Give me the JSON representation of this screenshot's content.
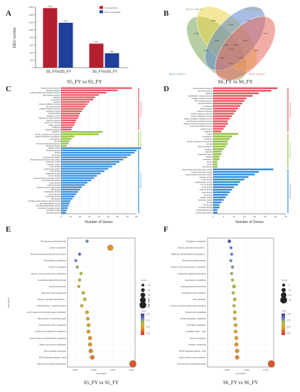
{
  "colors": {
    "up": "#b41f2e",
    "down": "#1f3f9a",
    "bp": "#e85a63",
    "cc": "#93c244",
    "mf": "#3a8fd6"
  },
  "panels": {
    "a": "A",
    "b": "B",
    "c": "C",
    "d": "D",
    "e": "E",
    "f": "F"
  },
  "chart_data": [
    {
      "id": "A",
      "type": "bar",
      "ylabel": "DEG number",
      "ylim": [
        0,
        1600
      ],
      "yticks": [
        "0",
        "200",
        "400",
        "600",
        "800",
        "1000",
        "1200",
        "1400",
        "1600"
      ],
      "categories": [
        "S5_FYvsS5_FY",
        "S6_FYvsS6_FY"
      ],
      "series": [
        {
          "name": "Up-Regulated",
          "values": [
            1575,
            635
          ]
        },
        {
          "name": "Down-Regulated",
          "values": [
            1187,
            383
          ]
        }
      ],
      "data_labels": [
        [
          "1575",
          "1187"
        ],
        [
          "635",
          "383"
        ]
      ]
    },
    {
      "id": "B",
      "type": "venn",
      "sets": [
        "S5_FY vs S5_FY",
        "S6_FY vs S6_FY",
        "S5_FY vs S6_FY",
        "S5_FY vs S6_FY"
      ],
      "regions": [
        "1209",
        "1071",
        "2895",
        "1117",
        "2098",
        "1200",
        "1020",
        "1050",
        "2000",
        "2010",
        "1100",
        "1203",
        "1020",
        "3053",
        "1020"
      ]
    },
    {
      "id": "C",
      "type": "bar",
      "title": "S5_FY vs S5_FY",
      "xlabel": "Number of Genes",
      "xticks": [
        "0",
        "10",
        "20",
        "30",
        "40",
        "50",
        "60",
        "70",
        "80"
      ],
      "groups": [
        "Biological Process",
        "Cellular Component",
        "Molecular Function"
      ],
      "categories": [
        "transmembrane transport",
        "signal transduction",
        "cellular carbohydrate metabolic process",
        "lipid metabolic process",
        "signaling",
        "ion transport",
        "transport",
        "protein modification process",
        "cell communication",
        "oxidation-reduction process",
        "response to stress",
        "phosphorylation",
        "metabolic process",
        "regulation of cellular process",
        "defense response",
        "response to stimulus",
        "cellular process",
        "localization",
        "biological regulation",
        "membrane",
        "intrinsic component of membrane",
        "integral component of membrane",
        "cell periphery",
        "cell wall",
        "external encapsulating structure",
        "plasma membrane",
        "catalytic activity",
        "transferase activity",
        "binding",
        "ion binding",
        "oxidoreductase activity",
        "DNA-binding transcription factor activity",
        "transporter activity",
        "hydrolase activity",
        "kinase activity",
        "protein kinase activity",
        "heme binding",
        "tetrapyrrole binding",
        "iron ion binding",
        "transmembrane transporter activity",
        "monooxygenase activity",
        "cation binding",
        "metal ion binding",
        "sequence-specific DNA binding",
        "ADP binding",
        "carbohydrate binding",
        "protein binding",
        "nucleic acid binding",
        "ATP binding",
        "hydrolase activity acting on glycosyl bonds",
        "glucosyltransferase activity",
        "UDP-glycosyltransferase activity",
        "transcription regulator activity",
        "peroxidase activity",
        "antioxidant activity"
      ],
      "values": [
        75,
        60,
        48,
        40,
        36,
        34,
        30,
        28,
        26,
        24,
        22,
        20,
        19,
        18,
        16,
        15,
        14,
        12,
        11,
        44,
        40,
        14,
        11,
        9,
        8,
        6,
        85,
        80,
        78,
        74,
        70,
        66,
        62,
        58,
        54,
        50,
        46,
        42,
        38,
        35,
        32,
        28,
        25,
        22,
        20,
        18,
        16,
        14,
        12,
        10,
        9,
        8,
        7,
        6,
        5
      ],
      "group_of": [
        0,
        0,
        0,
        0,
        0,
        0,
        0,
        0,
        0,
        0,
        0,
        0,
        0,
        0,
        0,
        0,
        0,
        0,
        0,
        1,
        1,
        1,
        1,
        1,
        1,
        1,
        2,
        2,
        2,
        2,
        2,
        2,
        2,
        2,
        2,
        2,
        2,
        2,
        2,
        2,
        2,
        2,
        2,
        2,
        2,
        2,
        2,
        2,
        2,
        2,
        2,
        2,
        2,
        2,
        2
      ]
    },
    {
      "id": "D",
      "type": "bar",
      "title": "S6_FY vs S6_FY",
      "xlabel": "Number of Genes",
      "xticks": [
        "0",
        "5",
        "10",
        "15",
        "20",
        "25",
        "30",
        "35"
      ],
      "groups": [
        "Biological Process",
        "Cellular Component",
        "Molecular Function"
      ],
      "categories": [
        "transmembrane transport",
        "cell communication",
        "signaling",
        "carbohydrate metabolic process",
        "oxidation-reduction process",
        "DNA metabolic process",
        "signal transduction",
        "ion transport",
        "phosphorylation",
        "response to stimulus",
        "cellular response to stimulus",
        "protein modification process",
        "organic substance metabolic process",
        "macromolecule metabolic process",
        "nitrogen compound metabolic process",
        "amino acid metabolic process",
        "cellular process",
        "localization",
        "nucleus",
        "cell periphery",
        "membrane",
        "intrinsic component of membrane",
        "cell wall",
        "plasma membrane",
        "cytoplasm",
        "organelle",
        "extracellular region",
        "apoplast",
        "cytoskeleton",
        "vacuole",
        "cytosol",
        "chromosome",
        "DNA-binding transcription factor activity",
        "protein dimerization activity",
        "transmembrane transporter activity",
        "hydrolase activity",
        "kinase activity",
        "oxidoreductase activity",
        "iron ion binding",
        "heme binding",
        "metal ion binding",
        "cation binding",
        "ion binding",
        "catalytic activity",
        "transferase activity",
        "binding",
        "ATP binding",
        "nucleotide binding",
        "carbohydrate binding",
        "protein kinase activity"
      ],
      "values": [
        31,
        28,
        22,
        19,
        16,
        15,
        14,
        13,
        12,
        11,
        10,
        9,
        8,
        7,
        7,
        6,
        5,
        4,
        12,
        9,
        8,
        7,
        7,
        6,
        5,
        4,
        4,
        3,
        3,
        2,
        2,
        2,
        29,
        22,
        20,
        17,
        15,
        13,
        12,
        10,
        9,
        8,
        7,
        6,
        5,
        4,
        3,
        3,
        2,
        2
      ],
      "group_of": [
        0,
        0,
        0,
        0,
        0,
        0,
        0,
        0,
        0,
        0,
        0,
        0,
        0,
        0,
        0,
        0,
        0,
        0,
        1,
        1,
        1,
        1,
        1,
        1,
        1,
        1,
        1,
        1,
        1,
        1,
        1,
        1,
        2,
        2,
        2,
        2,
        2,
        2,
        2,
        2,
        2,
        2,
        2,
        2,
        2,
        2,
        2,
        2,
        2,
        2
      ]
    },
    {
      "id": "E",
      "type": "scatter",
      "title": "S5_FY vs S5_FY",
      "xlabel": "GeneRatio",
      "ylabel": "Description",
      "xlim": [
        0.015,
        0.105
      ],
      "xticks": [
        "0.025",
        "0.050",
        "0.075",
        "0.100"
      ],
      "legend_size_title": "Count",
      "legend_size_values": [
        "10",
        "20",
        "30",
        "40",
        "50"
      ],
      "legend_color_title": "p.adj",
      "legend_color_values": [
        "1.00",
        "0.75",
        "0.50",
        "0.25"
      ],
      "categories": [
        "Phenylpropanoid biosynthesis",
        "Carbon metabolism",
        "Pentose and glucuronate interconversions",
        "Phenylalanine metabolism",
        "Thiamine metabolism",
        "Glycine, serine and threonine metabolism",
        "Isoquinoline alkaloid biosynthesis",
        "Steroid biosynthesis",
        "Glycolysis / Gluconeogenesis",
        "Tropane, piperidine and pyridine...",
        "Photosynthesis - antenna proteins",
        "Amino sugar and nucleotide sugar metabolism",
        "Biosynthesis of nucleotide sugars",
        "Arginine and proline metabolism",
        "Cysteine and methionine metabolism",
        "Carbon fixation in photosynthetic organisms",
        "Starch and sucrose metabolism",
        "Plant pathogen interaction",
        "MAPK signaling pathway - plant",
        "Plant hormone signal transduction"
      ],
      "x": [
        0.041,
        0.072,
        0.031,
        0.026,
        0.028,
        0.033,
        0.031,
        0.03,
        0.036,
        0.038,
        0.034,
        0.041,
        0.042,
        0.043,
        0.043,
        0.045,
        0.045,
        0.046,
        0.048,
        0.102
      ],
      "size": [
        12,
        38,
        10,
        9,
        10,
        12,
        11,
        10,
        14,
        15,
        12,
        16,
        16,
        18,
        18,
        20,
        20,
        22,
        24,
        48
      ],
      "padj": [
        0.75,
        0.3,
        0.85,
        0.8,
        0.65,
        0.6,
        0.55,
        0.5,
        0.5,
        0.45,
        0.45,
        0.4,
        0.4,
        0.35,
        0.35,
        0.3,
        0.3,
        0.25,
        0.2,
        0.1
      ]
    },
    {
      "id": "F",
      "type": "scatter",
      "title": "S6_FY vs S6_FY",
      "xlabel": "GeneRatio",
      "ylabel": "Description",
      "xlim": [
        0.0,
        0.085
      ],
      "xticks": [
        "0.025",
        "0.050",
        "0.075"
      ],
      "legend_size_title": "Count",
      "legend_size_values": [
        "5",
        "10",
        "15",
        "20"
      ],
      "legend_color_title": "p.adj",
      "legend_color_values": [
        "1.00",
        "0.75",
        "0.50",
        "0.25"
      ],
      "categories": [
        "Glutathione metabolism",
        "Tropane, piperidine and pyridine...",
        "Stilbenoid, diarylheptanoid and gingerol...",
        "Pentose phosphate pathway",
        "Glycine, serine and threonine metabolism",
        "Isoquinoline alkaloid biosynthesis",
        "beta-Alanine metabolism",
        "Phenylpropanoid biosynthesis",
        "Arachidonic acid metabolism",
        "DNA replication",
        "Pentose and glucuronate interconversions",
        "Linoleic acid metabolism",
        "Inositol phosphate metabolism",
        "Pyrimidine metabolism",
        "Circadian rhythm - plant",
        "Taurine metabolism",
        "Nitrogen metabolism",
        "MAPK signaling pathway - plant",
        "alpha-Linolenic acid metabolism",
        "Plant hormone signal transduction"
      ],
      "x": [
        0.028,
        0.03,
        0.031,
        0.03,
        0.032,
        0.031,
        0.032,
        0.034,
        0.033,
        0.035,
        0.034,
        0.035,
        0.035,
        0.036,
        0.036,
        0.037,
        0.037,
        0.038,
        0.038,
        0.082
      ],
      "size": [
        6,
        4,
        4,
        4,
        5,
        4,
        5,
        7,
        5,
        6,
        5,
        6,
        6,
        7,
        7,
        8,
        8,
        9,
        9,
        20
      ],
      "padj": [
        0.9,
        0.8,
        0.8,
        0.75,
        0.7,
        0.65,
        0.6,
        0.6,
        0.55,
        0.5,
        0.5,
        0.45,
        0.45,
        0.4,
        0.4,
        0.35,
        0.3,
        0.3,
        0.25,
        0.1
      ]
    }
  ]
}
